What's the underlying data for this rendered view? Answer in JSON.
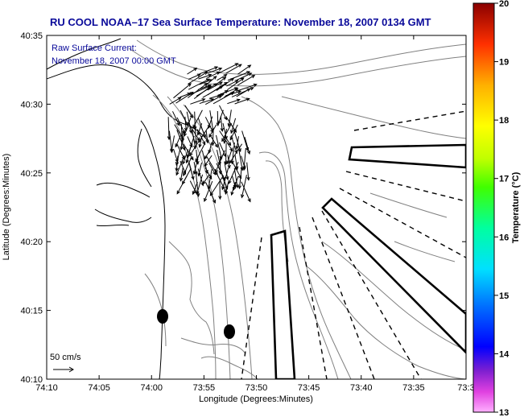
{
  "title": "RU COOL  NOAA–17  Sea Surface Temperature:  November 18, 2007 0134 GMT",
  "overlay": {
    "line1": "Raw Surface Current:",
    "line2": "November 18, 2007 00:00 GMT"
  },
  "scale_label": "50 cm/s",
  "xlabel": "Longitude (Degrees:Minutes)",
  "ylabel": "Latitude (Degrees:Minutes)",
  "x_ticks": [
    "74:10",
    "74:05",
    "74:00",
    "73:55",
    "73:50",
    "73:45",
    "73:40",
    "73:35",
    "73:3"
  ],
  "y_ticks": [
    "40:35",
    "40:30",
    "40:25",
    "40:20",
    "40:15",
    "40:10"
  ],
  "colorbar": {
    "label": "Temperature (°C)",
    "ticks": [
      "20",
      "19",
      "18",
      "17",
      "16",
      "15",
      "14",
      "13"
    ],
    "min": 13,
    "max": 20
  },
  "colors": {
    "title": "#0a0a9a",
    "frame": "#000000",
    "contour": "#808080",
    "vector": "#000000"
  }
}
